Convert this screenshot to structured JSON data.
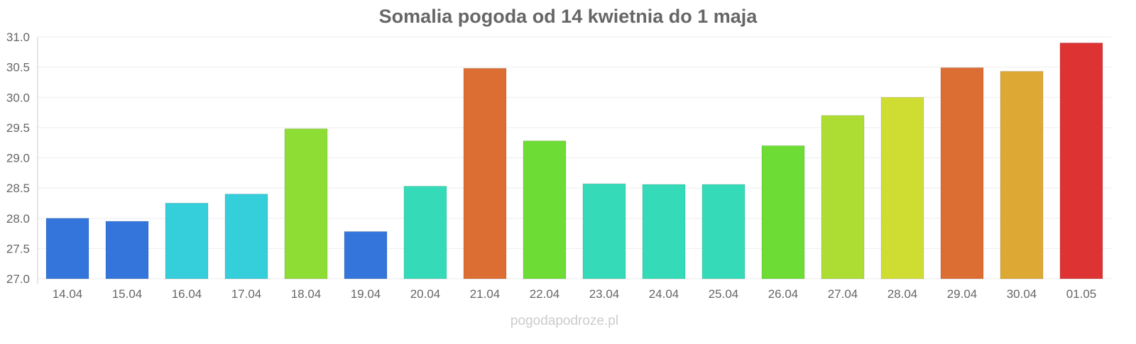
{
  "chart_data": {
    "type": "bar",
    "title": "Somalia pogoda od 14 kwietnia do 1 maja",
    "xlabel": "",
    "ylabel": "",
    "ylim": [
      27.0,
      31.0
    ],
    "yticks": [
      "27.0",
      "27.5",
      "28.0",
      "28.5",
      "29.0",
      "29.5",
      "30.0",
      "30.5",
      "31.0"
    ],
    "grid": true,
    "categories": [
      "14.04",
      "15.04",
      "16.04",
      "17.04",
      "18.04",
      "19.04",
      "20.04",
      "21.04",
      "22.04",
      "23.04",
      "24.04",
      "25.04",
      "26.04",
      "27.04",
      "28.04",
      "29.04",
      "30.04",
      "01.05"
    ],
    "values": [
      28.0,
      27.95,
      28.25,
      28.4,
      29.48,
      27.78,
      28.53,
      30.48,
      29.28,
      28.57,
      28.56,
      28.56,
      29.2,
      29.7,
      30.0,
      30.49,
      30.43,
      30.9
    ],
    "colors": [
      "#3375db",
      "#3375db",
      "#35cedb",
      "#35cedb",
      "#8ddd35",
      "#3375db",
      "#35dbb8",
      "#dd6e33",
      "#6ddd35",
      "#35dbb8",
      "#35dbb8",
      "#35dbb8",
      "#6ddd35",
      "#addd33",
      "#cfdd33",
      "#dd6e33",
      "#dda833",
      "#dd3333"
    ]
  },
  "watermark": "pogodapodroze.pl"
}
